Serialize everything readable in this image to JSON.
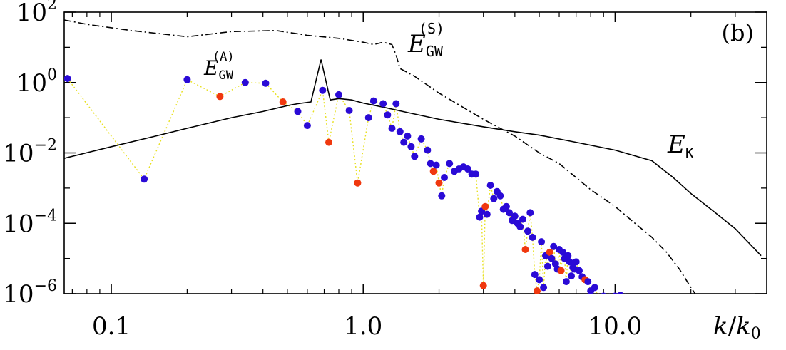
{
  "chart_data": {
    "type": "scatter",
    "panel_label": "(b)",
    "xlabel": {
      "k": "k",
      "slash": "/",
      "k0": "k",
      "k0_sub": "0"
    },
    "x_scale": "log",
    "y_scale": "log",
    "xlim": [
      0.065,
      40.0
    ],
    "ylim": [
      1e-06,
      100
    ],
    "x_ticks": [
      {
        "value": 0.1,
        "label": "0.1"
      },
      {
        "value": 1.0,
        "label": "1.0"
      },
      {
        "value": 10.0,
        "label": "10.0"
      }
    ],
    "y_ticks": [
      {
        "value": 100,
        "base": "10",
        "exp": "2"
      },
      {
        "value": 1,
        "base": "10",
        "exp": "0"
      },
      {
        "value": 0.01,
        "base": "10",
        "exp": "−2"
      },
      {
        "value": 0.0001,
        "base": "10",
        "exp": "−4"
      },
      {
        "value": 1e-06,
        "base": "10",
        "exp": "−6"
      }
    ],
    "annotations": {
      "egw_s": {
        "E": "E",
        "sub": "GW",
        "sup": "(S)"
      },
      "egw_a": {
        "E": "E",
        "sub": "GW",
        "sup": "(A)"
      },
      "ek": {
        "E": "E",
        "sub": "K"
      }
    },
    "colors": {
      "positive": "#2a0ad6",
      "negative": "#f0380e",
      "connector": "#e8e020",
      "curves": "#000000"
    },
    "series": [
      {
        "key": "E_GW_S",
        "style": "dash-dot",
        "points": [
          [
            0.065,
            60
          ],
          [
            0.08,
            45
          ],
          [
            0.12,
            30
          ],
          [
            0.2,
            20
          ],
          [
            0.3,
            28
          ],
          [
            0.45,
            30
          ],
          [
            0.6,
            22
          ],
          [
            0.8,
            18
          ],
          [
            1.0,
            14
          ],
          [
            1.1,
            12
          ],
          [
            1.2,
            14
          ],
          [
            1.3,
            12
          ],
          [
            1.35,
            6
          ],
          [
            1.4,
            2.5
          ],
          [
            1.6,
            1.5
          ],
          [
            2.0,
            0.5
          ],
          [
            3.0,
            0.09
          ],
          [
            4.0,
            0.03
          ],
          [
            5.0,
            0.01
          ],
          [
            6.0,
            0.005
          ],
          [
            7.0,
            0.002
          ],
          [
            8.0,
            0.0009
          ],
          [
            10.0,
            0.0003
          ],
          [
            12.0,
            0.0001
          ],
          [
            14.0,
            4e-05
          ],
          [
            16.0,
            1.5e-05
          ],
          [
            18.0,
            5e-06
          ],
          [
            20.0,
            1.5e-06
          ],
          [
            21.0,
            9e-07
          ]
        ]
      },
      {
        "key": "E_K",
        "style": "solid",
        "points": [
          [
            0.065,
            0.007
          ],
          [
            0.1,
            0.015
          ],
          [
            0.15,
            0.03
          ],
          [
            0.2,
            0.05
          ],
          [
            0.3,
            0.1
          ],
          [
            0.4,
            0.15
          ],
          [
            0.5,
            0.22
          ],
          [
            0.55,
            0.25
          ],
          [
            0.62,
            0.28
          ],
          [
            0.68,
            4.5
          ],
          [
            0.74,
            0.32
          ],
          [
            0.8,
            0.35
          ],
          [
            0.9,
            0.32
          ],
          [
            1.0,
            0.26
          ],
          [
            1.2,
            0.2
          ],
          [
            1.5,
            0.14
          ],
          [
            2.0,
            0.09
          ],
          [
            3.0,
            0.055
          ],
          [
            4.0,
            0.04
          ],
          [
            5.0,
            0.032
          ],
          [
            7.0,
            0.02
          ],
          [
            10.0,
            0.012
          ],
          [
            14.0,
            0.006
          ],
          [
            17.0,
            0.002
          ],
          [
            20.0,
            0.0007
          ],
          [
            25.0,
            0.0002
          ],
          [
            30.0,
            7e-05
          ],
          [
            38.0,
            1.2e-05
          ]
        ]
      },
      {
        "key": "E_GW_A",
        "style": "points",
        "points": [
          [
            0.067,
            1.3,
            1
          ],
          [
            0.135,
            0.0018,
            1
          ],
          [
            0.2,
            1.2,
            1
          ],
          [
            0.27,
            0.4,
            0
          ],
          [
            0.34,
            1.0,
            1
          ],
          [
            0.41,
            0.95,
            1
          ],
          [
            0.48,
            0.28,
            0
          ],
          [
            0.55,
            0.15,
            1
          ],
          [
            0.6,
            0.06,
            1
          ],
          [
            0.69,
            0.6,
            1
          ],
          [
            0.73,
            0.02,
            0
          ],
          [
            0.8,
            0.45,
            1
          ],
          [
            0.88,
            0.16,
            1
          ],
          [
            0.95,
            0.0014,
            0
          ],
          [
            1.05,
            0.1,
            1
          ],
          [
            1.1,
            0.3,
            1
          ],
          [
            1.2,
            0.25,
            1
          ],
          [
            1.25,
            0.12,
            1
          ],
          [
            1.3,
            0.05,
            1
          ],
          [
            1.35,
            0.25,
            1
          ],
          [
            1.4,
            0.04,
            1
          ],
          [
            1.45,
            0.02,
            1
          ],
          [
            1.5,
            0.03,
            1
          ],
          [
            1.55,
            0.015,
            1
          ],
          [
            1.6,
            0.008,
            1
          ],
          [
            1.7,
            0.025,
            1
          ],
          [
            1.8,
            0.012,
            1
          ],
          [
            1.85,
            0.005,
            1
          ],
          [
            1.9,
            0.003,
            0
          ],
          [
            1.95,
            0.0045,
            1
          ],
          [
            2.0,
            0.0014,
            0
          ],
          [
            2.05,
            0.0006,
            1
          ],
          [
            2.1,
            0.002,
            1
          ],
          [
            2.2,
            0.005,
            1
          ],
          [
            2.3,
            0.003,
            1
          ],
          [
            2.4,
            0.0035,
            1
          ],
          [
            2.5,
            0.004,
            1
          ],
          [
            2.6,
            0.0035,
            1
          ],
          [
            2.7,
            0.0025,
            1
          ],
          [
            2.8,
            0.0025,
            1
          ],
          [
            2.9,
            0.00015,
            1
          ],
          [
            2.95,
            0.00022,
            1
          ],
          [
            3.0,
            1.7e-06,
            0
          ],
          [
            3.05,
            0.0003,
            0
          ],
          [
            3.1,
            0.00018,
            1
          ],
          [
            3.2,
            0.0012,
            1
          ],
          [
            3.3,
            0.0005,
            1
          ],
          [
            3.4,
            0.0008,
            1
          ],
          [
            3.5,
            0.0006,
            1
          ],
          [
            3.6,
            0.00025,
            1
          ],
          [
            3.7,
            0.0003,
            1
          ],
          [
            3.8,
            0.0002,
            1
          ],
          [
            3.9,
            0.00012,
            1
          ],
          [
            4.0,
            0.00016,
            1
          ],
          [
            4.1,
            0.0001,
            1
          ],
          [
            4.2,
            8e-05,
            1
          ],
          [
            4.3,
            0.00013,
            1
          ],
          [
            4.4,
            1.8e-05,
            0
          ],
          [
            4.5,
            6e-05,
            1
          ],
          [
            4.6,
            0.0002,
            1
          ],
          [
            4.7,
            4e-05,
            1
          ],
          [
            4.8,
            3.5e-06,
            1
          ],
          [
            4.9,
            1.2e-06,
            0
          ],
          [
            5.0,
            2.5e-06,
            1
          ],
          [
            5.1,
            3e-05,
            1
          ],
          [
            5.2,
            1.5e-06,
            1
          ],
          [
            5.3,
            1.2e-05,
            1
          ],
          [
            5.4,
            6e-06,
            1
          ],
          [
            5.5,
            1.5e-05,
            0
          ],
          [
            5.6,
            1e-05,
            1
          ],
          [
            5.7,
            2.2e-05,
            1
          ],
          [
            5.8,
            7e-06,
            1
          ],
          [
            5.9,
            5e-06,
            1
          ],
          [
            6.0,
            1.8e-05,
            1
          ],
          [
            6.1,
            4.5e-06,
            0
          ],
          [
            6.2,
            1.5e-05,
            1
          ],
          [
            6.3,
            1e-05,
            1
          ],
          [
            6.4,
            2.2e-06,
            1
          ],
          [
            6.5,
            1.2e-05,
            1
          ],
          [
            6.6,
            8e-06,
            1
          ],
          [
            6.7,
            3.2e-06,
            1
          ],
          [
            6.8,
            5.5e-06,
            1
          ],
          [
            6.9,
            5e-06,
            1
          ],
          [
            7.0,
            8e-06,
            1
          ],
          [
            7.2,
            4.5e-06,
            1
          ],
          [
            7.4,
            3e-06,
            1
          ],
          [
            7.6,
            2.5e-06,
            0
          ],
          [
            7.8,
            2.2e-06,
            1
          ],
          [
            8.0,
            1.2e-06,
            1
          ],
          [
            8.3,
            1.5e-06,
            1
          ],
          [
            8.6,
            8e-07,
            0
          ],
          [
            9.0,
            8.5e-07,
            1
          ],
          [
            9.5,
            8e-07,
            1
          ],
          [
            10.0,
            8.5e-07,
            1
          ],
          [
            10.5,
            9e-07,
            1
          ],
          [
            11.0,
            8e-07,
            1
          ]
        ]
      }
    ]
  }
}
